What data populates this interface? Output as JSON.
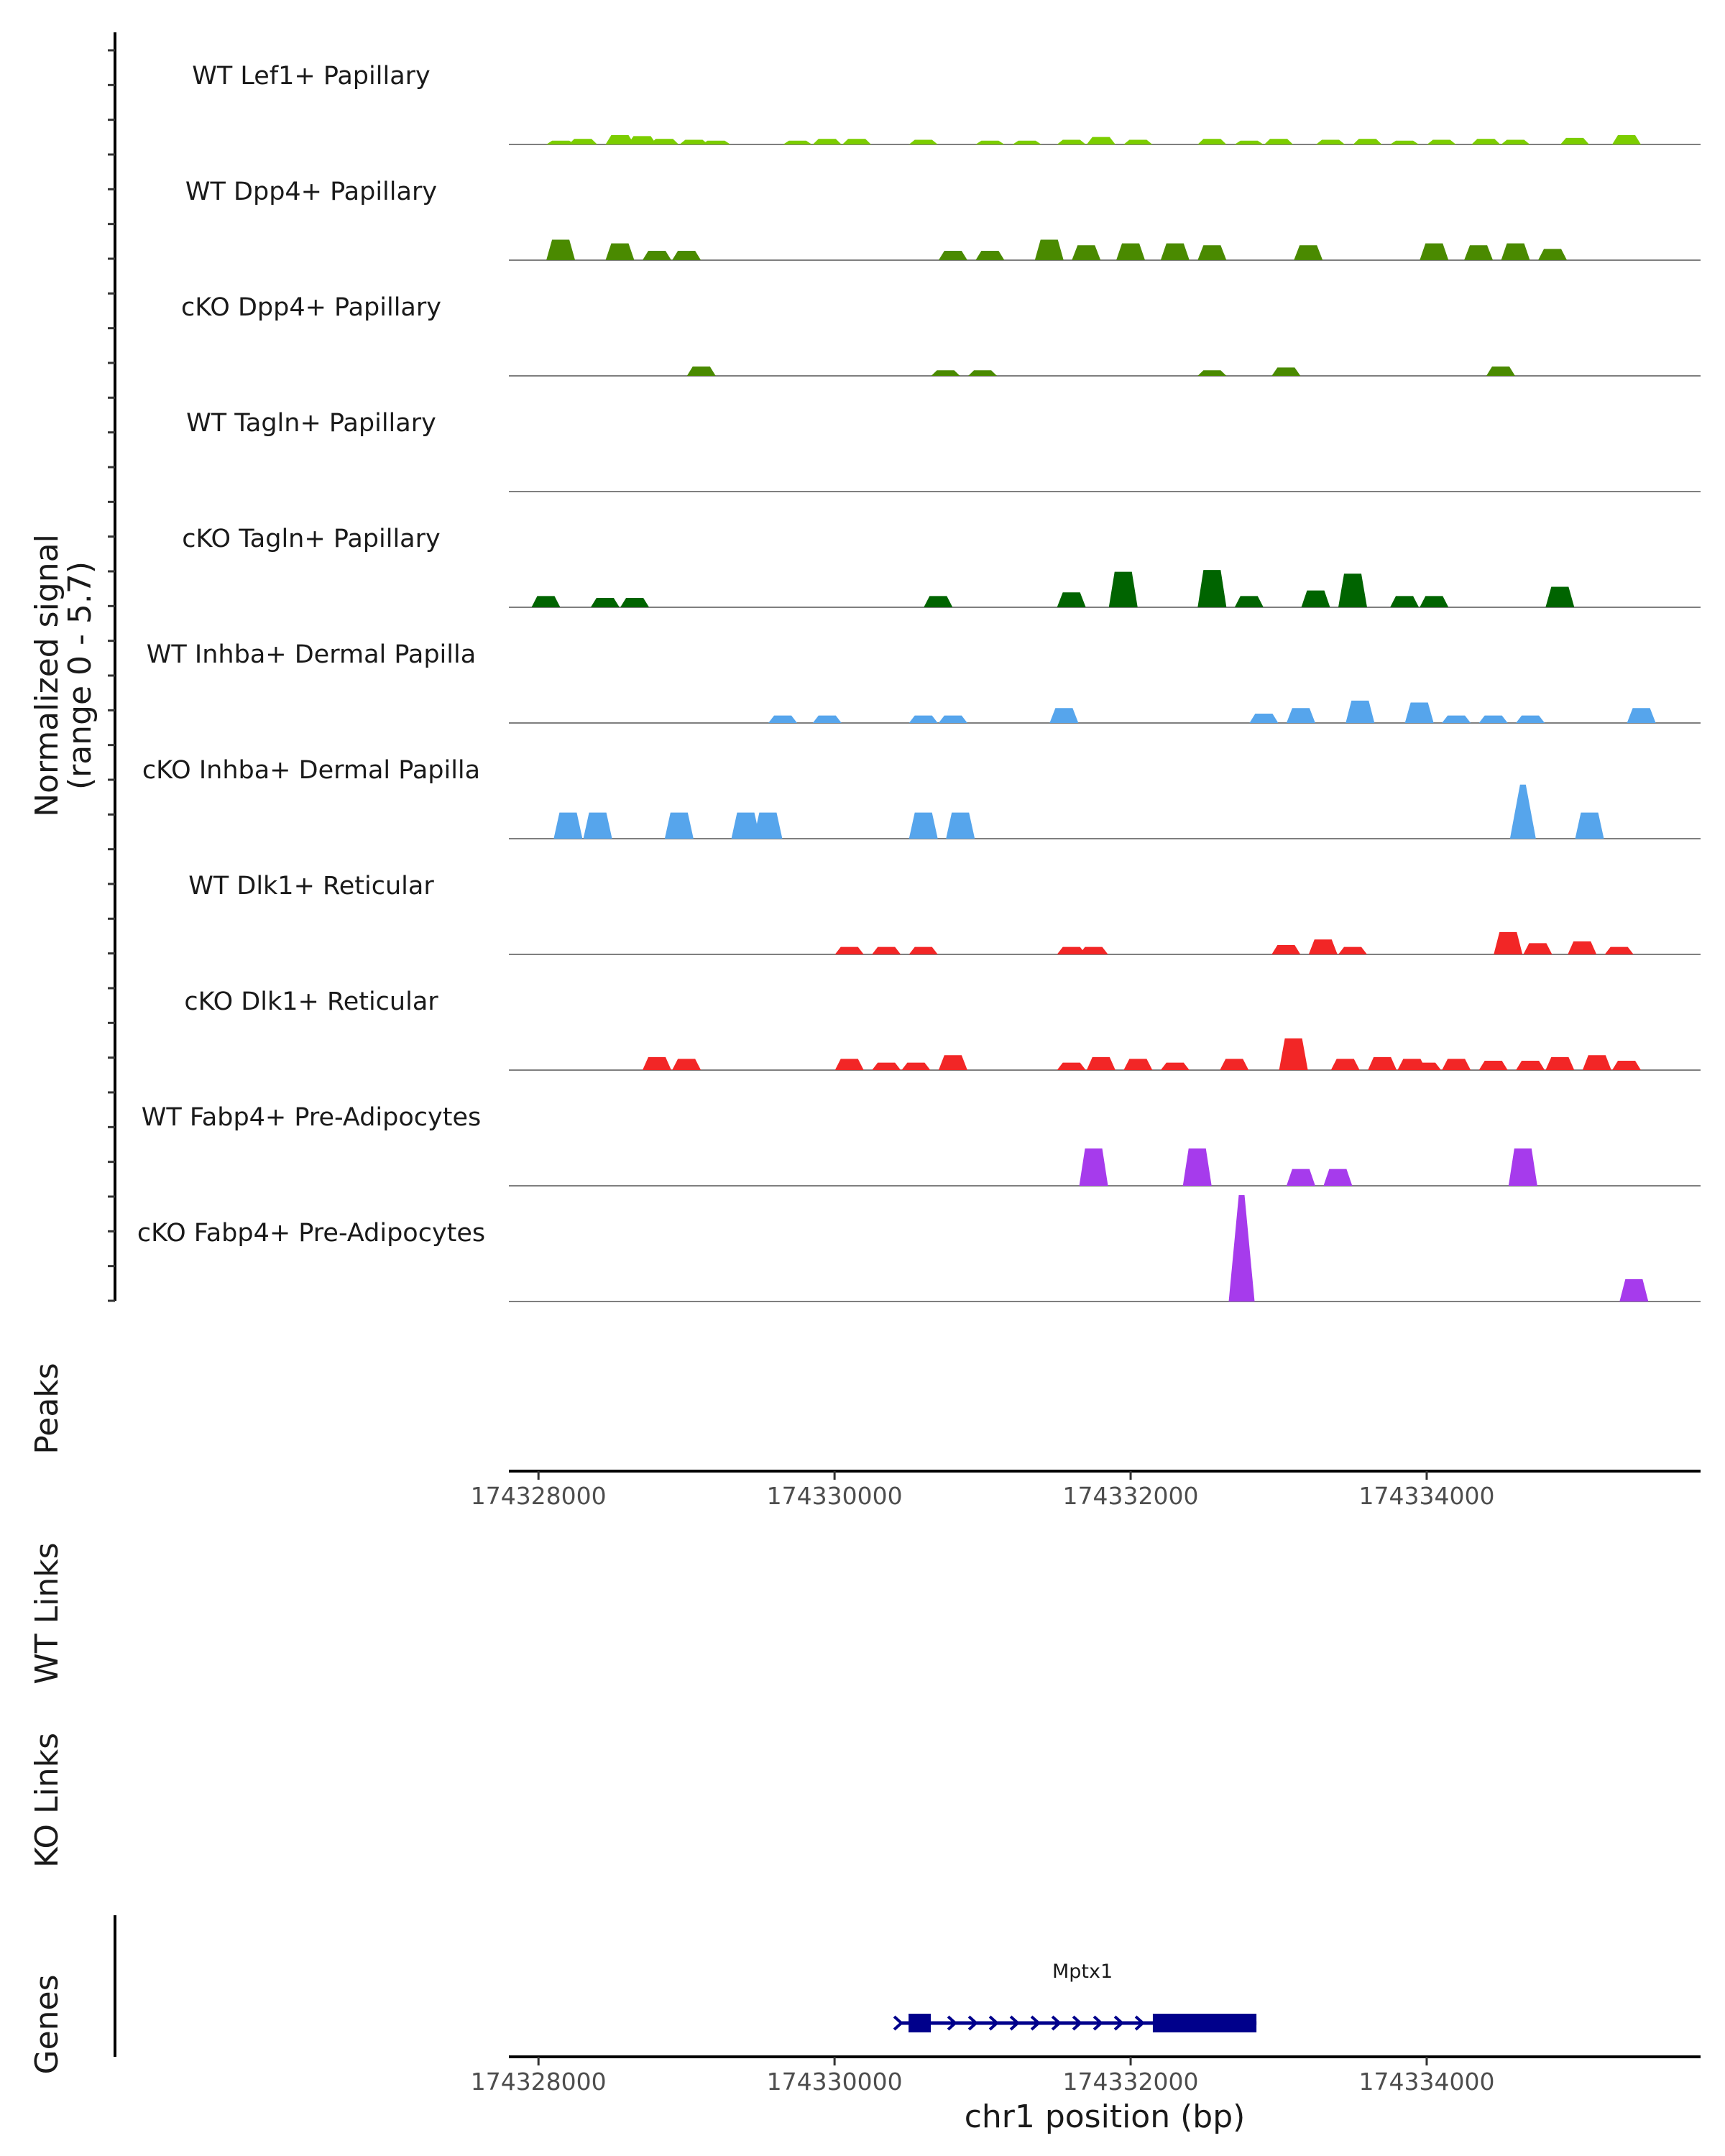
{
  "chart_data": {
    "type": "coverage",
    "signal_axis_label": "Normalized signal",
    "signal_axis_range": "(range 0 - 5.7)",
    "ylim": [
      0,
      5.7
    ],
    "xlim": [
      174327800,
      174335850
    ],
    "x_ticks": [
      174328000,
      174330000,
      174332000,
      174334000
    ],
    "x_tick_labels": [
      "174328000",
      "174330000",
      "174332000",
      "174334000"
    ],
    "xlabel": "chr1 position (bp)",
    "panel_titles": {
      "peaks": "Peaks",
      "wt_links": "WT Links",
      "ko_links": "KO Links",
      "genes": "Genes"
    },
    "tracks": [
      {
        "name": "WT Lef1+ Papillary",
        "color": "#7CCD00",
        "peaks": [
          [
            174328150,
            0.2
          ],
          [
            174328300,
            0.3
          ],
          [
            174328550,
            0.5
          ],
          [
            174328700,
            0.45
          ],
          [
            174328850,
            0.3
          ],
          [
            174329050,
            0.25
          ],
          [
            174329200,
            0.2
          ],
          [
            174329750,
            0.2
          ],
          [
            174329950,
            0.3
          ],
          [
            174330150,
            0.3
          ],
          [
            174330600,
            0.25
          ],
          [
            174331050,
            0.2
          ],
          [
            174331300,
            0.2
          ],
          [
            174331600,
            0.25
          ],
          [
            174331800,
            0.4
          ],
          [
            174332050,
            0.25
          ],
          [
            174332550,
            0.3
          ],
          [
            174332800,
            0.2
          ],
          [
            174333000,
            0.3
          ],
          [
            174333350,
            0.25
          ],
          [
            174333600,
            0.3
          ],
          [
            174333850,
            0.2
          ],
          [
            174334100,
            0.25
          ],
          [
            174334400,
            0.3
          ],
          [
            174334600,
            0.25
          ],
          [
            174335000,
            0.35
          ],
          [
            174335350,
            0.5
          ]
        ]
      },
      {
        "name": "WT Dpp4+ Papillary",
        "color": "#4A8A00",
        "peaks": [
          [
            174328150,
            1.1
          ],
          [
            174328550,
            0.9
          ],
          [
            174328800,
            0.5
          ],
          [
            174329000,
            0.5
          ],
          [
            174330800,
            0.5
          ],
          [
            174331050,
            0.5
          ],
          [
            174331450,
            1.1
          ],
          [
            174331700,
            0.8
          ],
          [
            174332000,
            0.9
          ],
          [
            174332300,
            0.9
          ],
          [
            174332550,
            0.8
          ],
          [
            174333200,
            0.8
          ],
          [
            174334050,
            0.9
          ],
          [
            174334350,
            0.8
          ],
          [
            174334600,
            0.9
          ],
          [
            174334850,
            0.6
          ]
        ]
      },
      {
        "name": "cKO Dpp4+ Papillary",
        "color": "#4A8A00",
        "peaks": [
          [
            174329100,
            0.5
          ],
          [
            174330750,
            0.3
          ],
          [
            174331000,
            0.3
          ],
          [
            174332550,
            0.3
          ],
          [
            174333050,
            0.45
          ],
          [
            174334500,
            0.5
          ]
        ]
      },
      {
        "name": "WT Tagln+ Papillary",
        "color": "#006400",
        "peaks": []
      },
      {
        "name": "cKO Tagln+ Papillary",
        "color": "#006400",
        "peaks": [
          [
            174328050,
            0.6
          ],
          [
            174328450,
            0.5
          ],
          [
            174328650,
            0.5
          ],
          [
            174330700,
            0.6
          ],
          [
            174331600,
            0.8
          ],
          [
            174331950,
            1.9
          ],
          [
            174332550,
            2.0
          ],
          [
            174332800,
            0.6
          ],
          [
            174333250,
            0.9
          ],
          [
            174333500,
            1.8
          ],
          [
            174333850,
            0.6
          ],
          [
            174334050,
            0.6
          ],
          [
            174334900,
            1.1
          ]
        ]
      },
      {
        "name": "WT Inhba+ Dermal Papilla",
        "color": "#56A5EC",
        "peaks": [
          [
            174329650,
            0.4
          ],
          [
            174329950,
            0.4
          ],
          [
            174330600,
            0.4
          ],
          [
            174330800,
            0.4
          ],
          [
            174331550,
            0.8
          ],
          [
            174332900,
            0.5
          ],
          [
            174333150,
            0.8
          ],
          [
            174333550,
            1.2
          ],
          [
            174333950,
            1.1
          ],
          [
            174334200,
            0.4
          ],
          [
            174334450,
            0.4
          ],
          [
            174334700,
            0.4
          ],
          [
            174335450,
            0.8
          ]
        ]
      },
      {
        "name": "cKO Inhba+ Dermal Papilla",
        "color": "#56A5EC",
        "peaks": [
          [
            174328200,
            1.4
          ],
          [
            174328400,
            1.4
          ],
          [
            174328950,
            1.4
          ],
          [
            174329400,
            1.4
          ],
          [
            174329550,
            1.4
          ],
          [
            174330600,
            1.4
          ],
          [
            174330850,
            1.4
          ],
          [
            174334650,
            2.9
          ],
          [
            174335100,
            1.4
          ]
        ]
      },
      {
        "name": "WT Dlk1+ Reticular",
        "color": "#F22626",
        "peaks": [
          [
            174330100,
            0.4
          ],
          [
            174330350,
            0.4
          ],
          [
            174330600,
            0.4
          ],
          [
            174331600,
            0.4
          ],
          [
            174331750,
            0.4
          ],
          [
            174333050,
            0.5
          ],
          [
            174333300,
            0.8
          ],
          [
            174333500,
            0.4
          ],
          [
            174334550,
            1.2
          ],
          [
            174334750,
            0.6
          ],
          [
            174335050,
            0.7
          ],
          [
            174335300,
            0.4
          ]
        ]
      },
      {
        "name": "cKO Dlk1+ Reticular",
        "color": "#F22626",
        "peaks": [
          [
            174328800,
            0.7
          ],
          [
            174329000,
            0.6
          ],
          [
            174330100,
            0.6
          ],
          [
            174330350,
            0.4
          ],
          [
            174330550,
            0.4
          ],
          [
            174330800,
            0.8
          ],
          [
            174331600,
            0.4
          ],
          [
            174331800,
            0.7
          ],
          [
            174332050,
            0.6
          ],
          [
            174332300,
            0.4
          ],
          [
            174332700,
            0.6
          ],
          [
            174333100,
            1.7
          ],
          [
            174333450,
            0.6
          ],
          [
            174333700,
            0.7
          ],
          [
            174333900,
            0.6
          ],
          [
            174334000,
            0.4
          ],
          [
            174334200,
            0.6
          ],
          [
            174334450,
            0.5
          ],
          [
            174334700,
            0.5
          ],
          [
            174334900,
            0.7
          ],
          [
            174335150,
            0.8
          ],
          [
            174335350,
            0.5
          ]
        ]
      },
      {
        "name": "WT Fabp4+ Pre-Adipocytes",
        "color": "#A63BEC",
        "peaks": [
          [
            174331750,
            2.0
          ],
          [
            174332450,
            2.0
          ],
          [
            174333150,
            0.9
          ],
          [
            174333400,
            0.9
          ],
          [
            174334650,
            2.0
          ]
        ]
      },
      {
        "name": "cKO Fabp4+ Pre-Adipocytes",
        "color": "#A63BEC",
        "peaks": [
          [
            174332750,
            5.7
          ],
          [
            174335400,
            1.2
          ]
        ]
      }
    ],
    "genes": [
      {
        "name": "Mptx1",
        "color": "#00008B",
        "start": 174330500,
        "end": 174332850,
        "exons": [
          [
            174330500,
            174330650
          ],
          [
            174332150,
            174332850
          ]
        ]
      }
    ]
  }
}
